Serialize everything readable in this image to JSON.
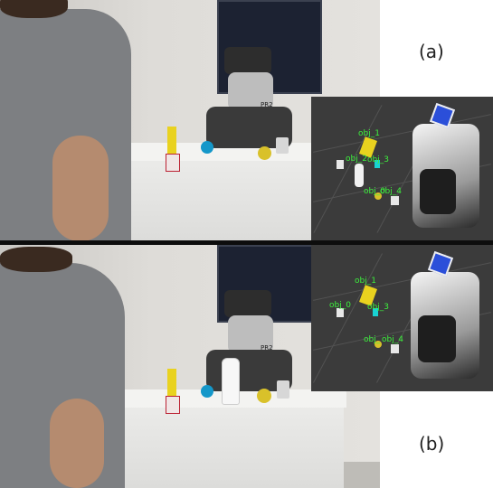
{
  "panels": [
    {
      "id": "a",
      "label": "(a)",
      "robot_badge": "PR2",
      "objects": [
        "obj_1",
        "obj_2",
        "obj_3",
        "obj_0",
        "obj_4"
      ]
    },
    {
      "id": "b",
      "label": "(b)",
      "robot_badge": "PR2",
      "objects": [
        "obj_1",
        "obj_0",
        "obj_3",
        "obj_",
        "obj_4"
      ]
    }
  ],
  "colors": {
    "label_green": "#3cf03c",
    "rviz_background": "#3b3b3b",
    "divider": "#0d0d0d"
  }
}
